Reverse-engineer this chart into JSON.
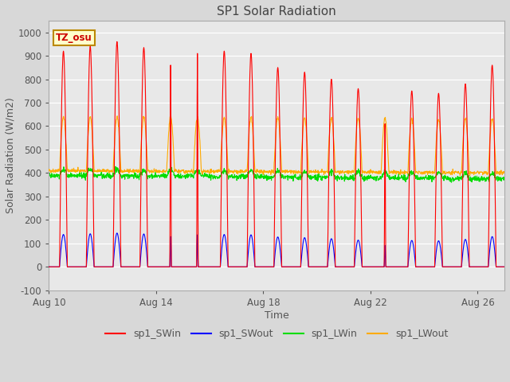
{
  "title": "SP1 Solar Radiation",
  "xlabel": "Time",
  "ylabel": "Solar Radiation (W/m2)",
  "ylim": [
    -100,
    1050
  ],
  "xlim_days": [
    0,
    17
  ],
  "tz_label": "TZ_osu",
  "xtick_labels": [
    "Aug 10",
    "Aug 14",
    "Aug 18",
    "Aug 22",
    "Aug 26"
  ],
  "xtick_positions": [
    0,
    4,
    8,
    12,
    16
  ],
  "ytick_values": [
    -100,
    0,
    100,
    200,
    300,
    400,
    500,
    600,
    700,
    800,
    900,
    1000
  ],
  "line_colors": {
    "sp1_SWin": "#ff0000",
    "sp1_SWout": "#0000ff",
    "sp1_LWin": "#00dd00",
    "sp1_LWout": "#ffaa00"
  },
  "background_color": "#d8d8d8",
  "plot_bg_color": "#e8e8e8",
  "grid_color": "#ffffff",
  "title_color": "#444444",
  "axis_label_color": "#555555",
  "tick_label_color": "#555555",
  "tz_box_facecolor": "#ffffcc",
  "tz_box_edgecolor": "#bb8800",
  "tz_text_color": "#cc0000",
  "num_days": 17
}
